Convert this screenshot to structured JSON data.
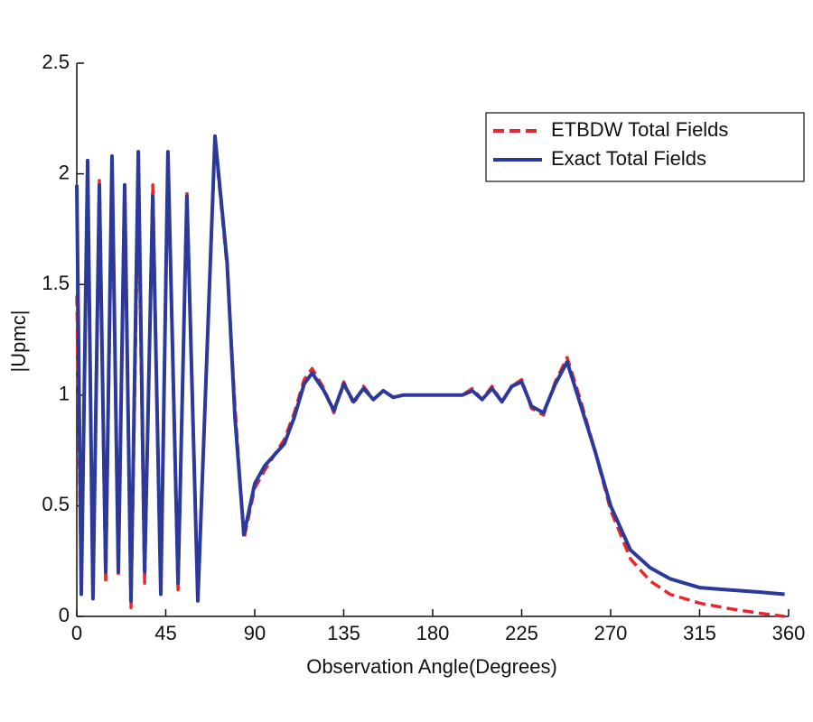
{
  "chart_data": {
    "type": "line",
    "x_label": "Observation Angle(Degrees)",
    "y_label": "|Upmc|",
    "x": [
      0,
      2.3,
      5.5,
      8.2,
      11.4,
      14.6,
      17.8,
      21,
      24.2,
      27.4,
      31.1,
      34.3,
      38.4,
      42.5,
      46.1,
      51.2,
      55.7,
      61.2,
      69.9,
      76,
      80,
      84.5,
      90,
      95,
      105,
      110,
      115,
      119,
      125,
      130,
      135,
      140,
      145,
      150,
      155,
      160,
      165,
      170,
      180,
      190,
      195,
      200,
      205,
      210,
      215,
      220,
      225,
      230,
      236,
      242,
      248,
      255,
      262,
      270,
      280,
      290,
      300,
      315,
      330,
      345,
      358
    ],
    "series": [
      {
        "name": "ETBDW Total Fields",
        "color": "#e8262d",
        "dash": true,
        "values": [
          1.45,
          0.12,
          2.0,
          0.1,
          1.97,
          0.15,
          2.0,
          0.18,
          1.95,
          0.04,
          1.95,
          0.15,
          1.95,
          0.12,
          2.08,
          0.12,
          1.92,
          0.08,
          2.15,
          1.58,
          0.95,
          0.35,
          0.58,
          0.66,
          0.8,
          0.92,
          1.07,
          1.12,
          1.03,
          0.92,
          1.06,
          0.96,
          1.04,
          0.98,
          1.02,
          0.99,
          1.0,
          1.0,
          1.0,
          1.0,
          1.0,
          1.03,
          0.98,
          1.04,
          0.97,
          1.04,
          1.07,
          0.94,
          0.91,
          1.06,
          1.17,
          0.97,
          0.75,
          0.48,
          0.26,
          0.16,
          0.1,
          0.06,
          0.035,
          0.015,
          0.0
        ]
      },
      {
        "name": "Exact Total Fields",
        "color": "#2b3a9a",
        "dash": false,
        "values": [
          1.95,
          0.1,
          2.06,
          0.08,
          1.95,
          0.2,
          2.08,
          0.2,
          1.95,
          0.07,
          2.1,
          0.2,
          1.9,
          0.1,
          2.1,
          0.15,
          1.9,
          0.07,
          2.17,
          1.6,
          0.9,
          0.37,
          0.6,
          0.68,
          0.78,
          0.9,
          1.05,
          1.1,
          1.02,
          0.93,
          1.05,
          0.97,
          1.03,
          0.98,
          1.02,
          0.99,
          1.0,
          1.0,
          1.0,
          1.0,
          1.0,
          1.02,
          0.98,
          1.03,
          0.97,
          1.04,
          1.06,
          0.95,
          0.92,
          1.05,
          1.15,
          0.95,
          0.75,
          0.5,
          0.3,
          0.22,
          0.17,
          0.13,
          0.12,
          0.11,
          0.1
        ]
      }
    ],
    "xlim": [
      0,
      360
    ],
    "xticks": [
      0,
      45,
      90,
      135,
      180,
      225,
      270,
      315,
      360
    ],
    "ylim": [
      0,
      2.5
    ],
    "yticks": [
      0,
      0.5,
      1,
      1.5,
      2,
      2.5
    ],
    "legend": "upper right",
    "grid": false
  }
}
